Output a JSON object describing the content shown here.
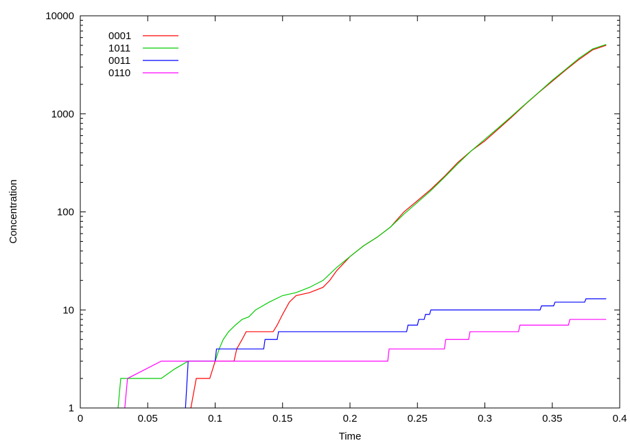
{
  "chart_data": {
    "type": "line",
    "xlabel": "Time",
    "ylabel": "Concentration",
    "xlim": [
      0,
      0.4
    ],
    "ylim": [
      1,
      10000
    ],
    "yscale": "log",
    "grid": false,
    "legend_position": "top-left",
    "x_ticks": [
      0,
      0.05,
      0.1,
      0.15,
      0.2,
      0.25,
      0.3,
      0.35,
      0.4
    ],
    "x_tick_labels": [
      "0",
      "0.05",
      "0.1",
      "0.15",
      "0.2",
      "0.25",
      "0.3",
      "0.35",
      "0.4"
    ],
    "y_ticks": [
      1,
      10,
      100,
      1000,
      10000
    ],
    "y_tick_labels": [
      "1",
      "10",
      "100",
      "1000",
      "10000"
    ],
    "series": [
      {
        "name": "0001",
        "color": "#ff0000",
        "points": [
          [
            0.082,
            1
          ],
          [
            0.086,
            2
          ],
          [
            0.096,
            2
          ],
          [
            0.1,
            3
          ],
          [
            0.114,
            3
          ],
          [
            0.116,
            4
          ],
          [
            0.12,
            5
          ],
          [
            0.123,
            6
          ],
          [
            0.143,
            6
          ],
          [
            0.146,
            7
          ],
          [
            0.15,
            9
          ],
          [
            0.155,
            12
          ],
          [
            0.16,
            14
          ],
          [
            0.17,
            15
          ],
          [
            0.18,
            17
          ],
          [
            0.185,
            20
          ],
          [
            0.19,
            25
          ],
          [
            0.2,
            35
          ],
          [
            0.21,
            45
          ],
          [
            0.22,
            55
          ],
          [
            0.23,
            70
          ],
          [
            0.24,
            100
          ],
          [
            0.25,
            130
          ],
          [
            0.26,
            170
          ],
          [
            0.27,
            230
          ],
          [
            0.28,
            320
          ],
          [
            0.29,
            420
          ],
          [
            0.3,
            530
          ],
          [
            0.31,
            700
          ],
          [
            0.32,
            930
          ],
          [
            0.33,
            1250
          ],
          [
            0.34,
            1650
          ],
          [
            0.35,
            2150
          ],
          [
            0.36,
            2800
          ],
          [
            0.37,
            3600
          ],
          [
            0.38,
            4500
          ],
          [
            0.39,
            5000
          ]
        ]
      },
      {
        "name": "1011",
        "color": "#00cc00",
        "points": [
          [
            0.028,
            1
          ],
          [
            0.03,
            2
          ],
          [
            0.06,
            2
          ],
          [
            0.07,
            2.5
          ],
          [
            0.08,
            3
          ],
          [
            0.1,
            3
          ],
          [
            0.103,
            4
          ],
          [
            0.106,
            5
          ],
          [
            0.11,
            6
          ],
          [
            0.115,
            7
          ],
          [
            0.12,
            8
          ],
          [
            0.125,
            8.5
          ],
          [
            0.13,
            10
          ],
          [
            0.14,
            12
          ],
          [
            0.15,
            14
          ],
          [
            0.16,
            15
          ],
          [
            0.17,
            17
          ],
          [
            0.18,
            20
          ],
          [
            0.19,
            27
          ],
          [
            0.2,
            35
          ],
          [
            0.21,
            45
          ],
          [
            0.22,
            55
          ],
          [
            0.23,
            70
          ],
          [
            0.24,
            95
          ],
          [
            0.25,
            125
          ],
          [
            0.26,
            165
          ],
          [
            0.27,
            225
          ],
          [
            0.28,
            310
          ],
          [
            0.29,
            420
          ],
          [
            0.3,
            550
          ],
          [
            0.31,
            720
          ],
          [
            0.32,
            950
          ],
          [
            0.33,
            1260
          ],
          [
            0.34,
            1660
          ],
          [
            0.35,
            2200
          ],
          [
            0.36,
            2850
          ],
          [
            0.37,
            3700
          ],
          [
            0.38,
            4600
          ],
          [
            0.39,
            5100
          ]
        ]
      },
      {
        "name": "0011",
        "color": "#0000ff",
        "points": [
          [
            0.078,
            1
          ],
          [
            0.08,
            3
          ],
          [
            0.1,
            3
          ],
          [
            0.101,
            4
          ],
          [
            0.136,
            4
          ],
          [
            0.137,
            5
          ],
          [
            0.146,
            5
          ],
          [
            0.147,
            6
          ],
          [
            0.242,
            6
          ],
          [
            0.243,
            7
          ],
          [
            0.25,
            7
          ],
          [
            0.251,
            8
          ],
          [
            0.255,
            8
          ],
          [
            0.256,
            9
          ],
          [
            0.259,
            9
          ],
          [
            0.26,
            10
          ],
          [
            0.341,
            10
          ],
          [
            0.342,
            11
          ],
          [
            0.351,
            11
          ],
          [
            0.352,
            12
          ],
          [
            0.374,
            12
          ],
          [
            0.375,
            13
          ],
          [
            0.39,
            13
          ]
        ]
      },
      {
        "name": "0110",
        "color": "#ff00ff",
        "points": [
          [
            0.033,
            1
          ],
          [
            0.035,
            2
          ],
          [
            0.06,
            3
          ],
          [
            0.228,
            3
          ],
          [
            0.229,
            4
          ],
          [
            0.27,
            4
          ],
          [
            0.271,
            5
          ],
          [
            0.288,
            5
          ],
          [
            0.289,
            6
          ],
          [
            0.325,
            6
          ],
          [
            0.326,
            7
          ],
          [
            0.362,
            7
          ],
          [
            0.363,
            8
          ],
          [
            0.39,
            8
          ]
        ]
      }
    ]
  }
}
